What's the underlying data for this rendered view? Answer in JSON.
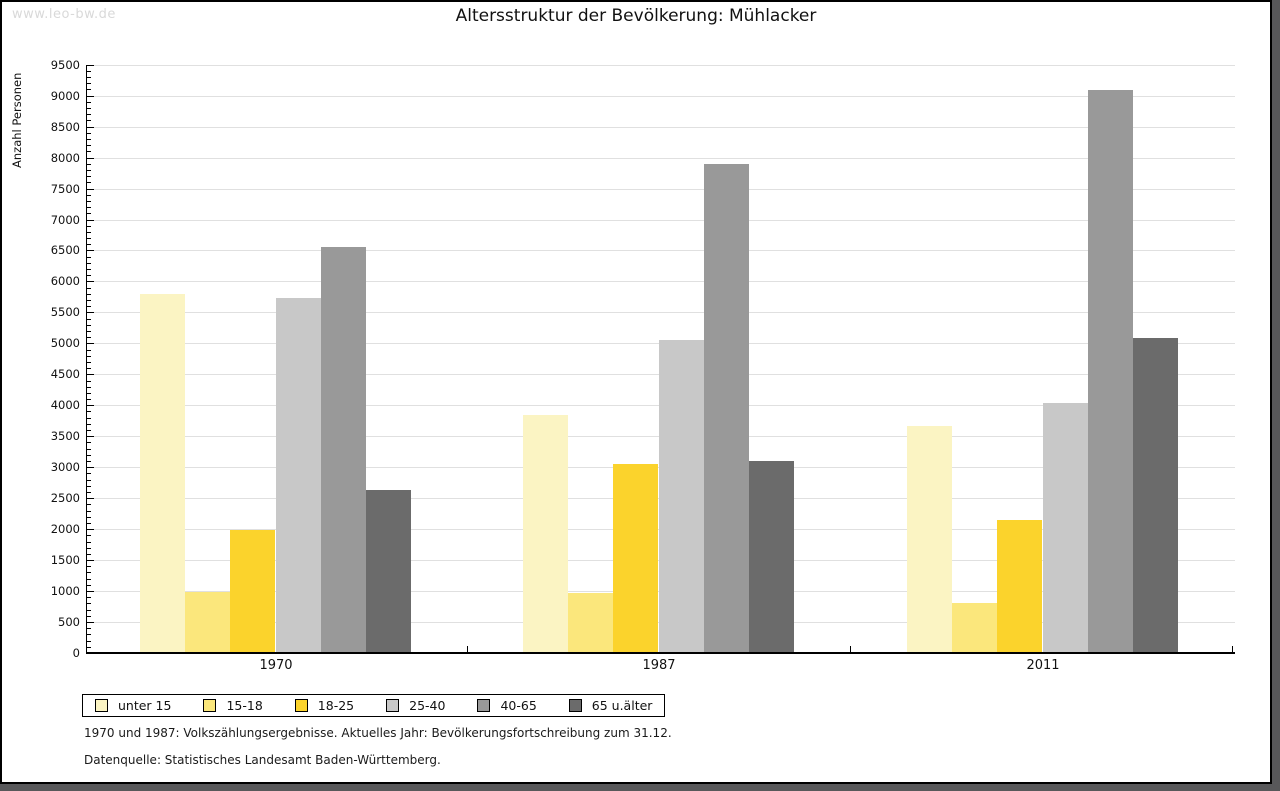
{
  "watermark": "www.leo-bw.de",
  "title": "Altersstruktur der Bevölkerung: Mühlacker",
  "footer": {
    "line1": "1970 und 1987: Volkszählungsergebnisse. Aktuelles Jahr: Bevölkerungsfortschreibung zum 31.12.",
    "line2": "Datenquelle: Statistisches Landesamt Baden-Württemberg."
  },
  "chart_data": {
    "type": "bar",
    "title": "Altersstruktur der Bevölkerung: Mühlacker",
    "xlabel": "",
    "ylabel": "Anzahl Personen",
    "categories": [
      "1970",
      "1987",
      "2011"
    ],
    "series": [
      {
        "name": "unter 15",
        "color": "#FBF4C3",
        "values": [
          5800,
          3840,
          3660
        ]
      },
      {
        "name": "15-18",
        "color": "#FBE77C",
        "values": [
          990,
          970,
          810
        ]
      },
      {
        "name": "18-25",
        "color": "#FBD32C",
        "values": [
          1990,
          3050,
          2140
        ]
      },
      {
        "name": "25-40",
        "color": "#C8C8C8",
        "values": [
          5740,
          5060,
          4040
        ]
      },
      {
        "name": "40-65",
        "color": "#999999",
        "values": [
          6550,
          7890,
          9090
        ]
      },
      {
        "name": "65 u.älter",
        "color": "#6B6B6B",
        "values": [
          2640,
          3100,
          5080
        ]
      }
    ],
    "ylim": [
      0,
      9500
    ],
    "ytick_step": 500,
    "yminor_step": 100,
    "grid": true,
    "legend_position": "bottom"
  }
}
